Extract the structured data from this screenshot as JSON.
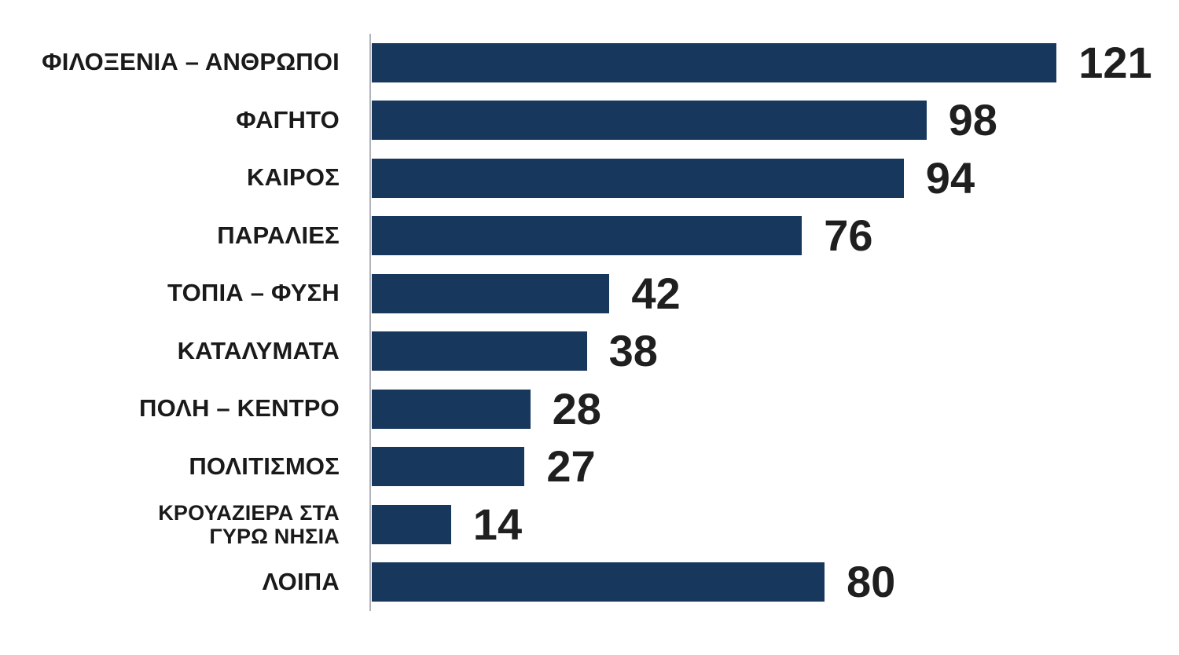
{
  "chart_data": {
    "type": "bar",
    "orientation": "horizontal",
    "title": "",
    "xlabel": "",
    "ylabel": "",
    "xlim": [
      0,
      130
    ],
    "grid": false,
    "legend": false,
    "categories": [
      "ΦΙΛΟΞΕΝΙΑ – ΑΝΘΡΩΠΟΙ",
      "ΦΑΓΗΤΟ",
      "ΚΑΙΡΟΣ",
      "ΠΑΡΑΛΙΕΣ",
      "ΤΟΠΙΑ – ΦΥΣΗ",
      "ΚΑΤΑΛΥΜΑΤΑ",
      "ΠΟΛΗ – ΚΕΝΤΡΟ",
      "ΠΟΛΙΤΙΣΜΟΣ",
      "ΚΡΟΥΑΖΙΕΡΑ ΣΤΑ\nΓΥΡΩ ΝΗΣΙΑ",
      "ΛΟΙΠΑ"
    ],
    "values": [
      121,
      98,
      94,
      76,
      42,
      38,
      28,
      27,
      14,
      80
    ],
    "colors": {
      "bar": "#17375d",
      "value_label": "#1f1f1f",
      "category_label": "#1a1a1a",
      "axis_line": "#b2b2ba",
      "background": "#ffffff"
    }
  }
}
